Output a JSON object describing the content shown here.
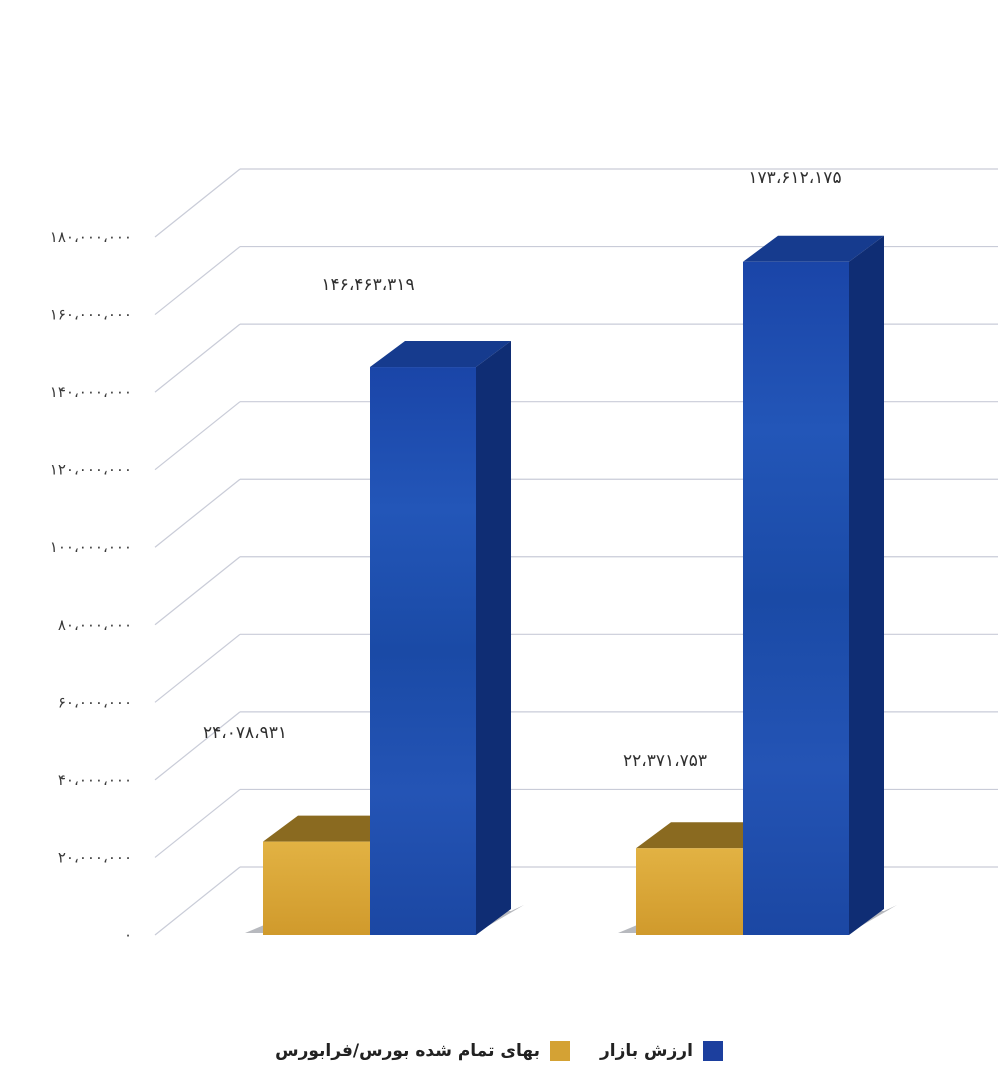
{
  "chart_data": {
    "type": "bar",
    "categories": [
      "",
      ""
    ],
    "series": [
      {
        "name": "ارزش بازار",
        "values": [
          146463319,
          173612175
        ],
        "color": "#1c46a6",
        "labels": [
          "۱۴۶،۴۶۳،۳۱۹",
          "۱۷۳،۶۱۲،۱۷۵"
        ]
      },
      {
        "name": "بهای تمام شده بورس/فرابورس",
        "values": [
          24078931,
          22371753
        ],
        "color": "#d8a636",
        "labels": [
          "۲۴،۰۷۸،۹۳۱",
          "۲۲،۳۷۱،۷۵۳"
        ]
      }
    ],
    "ylim": [
      0,
      180000000
    ],
    "yticks": [
      0,
      20000000,
      40000000,
      60000000,
      80000000,
      100000000,
      120000000,
      140000000,
      160000000,
      180000000
    ],
    "ytick_labels": [
      "۰",
      "۲۰،۰۰۰،۰۰۰",
      "۴۰،۰۰۰،۰۰۰",
      "۶۰،۰۰۰،۰۰۰",
      "۸۰،۰۰۰،۰۰۰",
      "۱۰۰،۰۰۰،۰۰۰",
      "۱۲۰،۰۰۰،۰۰۰",
      "۱۴۰،۰۰۰،۰۰۰",
      "۱۶۰،۰۰۰،۰۰۰",
      "۱۸۰،۰۰۰،۰۰۰"
    ],
    "grid": true,
    "three_d": true,
    "legend_position": "bottom-center"
  },
  "legend": {
    "market_value": "ارزش بازار",
    "cost": "بهای تمام شده بورس/فرابورس",
    "market_value_color": "#1c3f9e",
    "cost_color": "#d4a234"
  }
}
